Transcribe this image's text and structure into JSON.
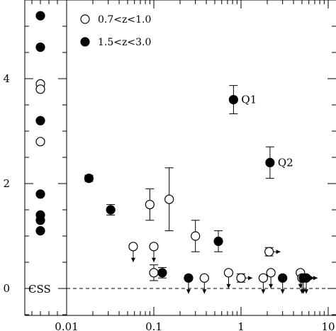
{
  "chart_data": {
    "type": "scatter",
    "title": "",
    "xlabel": "",
    "ylabel": "",
    "x_scale": "log",
    "xlim": [
      0.0045,
      10
    ],
    "ylim": [
      -0.55,
      5.45
    ],
    "x_tick_labels": [
      "0.01",
      "0.1",
      "1",
      "10"
    ],
    "y_tick_labels": [
      "0",
      "2",
      "4"
    ],
    "y_tick_values": [
      0,
      2,
      4
    ],
    "css_label": "CSS",
    "css_x": 0.0058,
    "legend_position": "top-left",
    "series": [
      {
        "name": "0.7<z<1.0",
        "marker": "open-circle",
        "css_values": [
          3.9,
          3.8,
          2.8
        ],
        "points": [
          {
            "x": 0.09,
            "y": 1.6,
            "err": [
              0.3,
              0.3
            ]
          },
          {
            "x": 0.15,
            "y": 1.7,
            "err": [
              0.6,
              0.6
            ]
          },
          {
            "x": 0.3,
            "y": 1.0,
            "err": [
              0.3,
              0.3
            ]
          },
          {
            "x": 2.1,
            "y": 0.7,
            "err": [
              0.08,
              0.08
            ],
            "right_limit": true
          },
          {
            "x": 0.1,
            "y": 0.3,
            "err": [
              0.15,
              0.15
            ]
          },
          {
            "x": 0.058,
            "y": 0.8,
            "upper_limit": true
          },
          {
            "x": 0.1,
            "y": 0.8,
            "upper_limit": true
          },
          {
            "x": 0.38,
            "y": 0.2,
            "upper_limit": true
          },
          {
            "x": 0.72,
            "y": 0.3,
            "upper_limit": true
          },
          {
            "x": 1.0,
            "y": 0.2,
            "err": [
              0.08,
              0.08
            ],
            "right_limit": true
          },
          {
            "x": 1.8,
            "y": 0.2,
            "upper_limit": true
          },
          {
            "x": 2.2,
            "y": 0.3,
            "upper_limit": true
          },
          {
            "x": 4.8,
            "y": 0.3,
            "upper_limit": true
          },
          {
            "x": 5.0,
            "y": 0.2,
            "upper_limit": true
          }
        ]
      },
      {
        "name": "1.5<z<3.0",
        "marker": "filled-circle",
        "css_values": [
          5.2,
          4.6,
          3.2,
          1.8,
          1.4,
          1.3,
          1.1
        ],
        "points": [
          {
            "x": 0.018,
            "y": 2.1,
            "err": [
              0.06,
              0.06
            ]
          },
          {
            "x": 0.032,
            "y": 1.5,
            "err": [
              0.1,
              0.1
            ]
          },
          {
            "x": 0.125,
            "y": 0.3,
            "err": [
              0.1,
              0.1
            ]
          },
          {
            "x": 0.25,
            "y": 0.2,
            "upper_limit": true
          },
          {
            "x": 0.55,
            "y": 0.9,
            "err": [
              0.2,
              0.2
            ]
          },
          {
            "x": 0.82,
            "y": 3.6,
            "err": [
              0.27,
              0.27
            ],
            "label": "Q1"
          },
          {
            "x": 2.15,
            "y": 2.4,
            "err": [
              0.3,
              0.3
            ],
            "label": "Q2"
          },
          {
            "x": 3.0,
            "y": 0.2,
            "upper_limit": true
          },
          {
            "x": 5.2,
            "y": 0.2,
            "upper_limit": true,
            "right_limit": true
          },
          {
            "x": 5.6,
            "y": 0.2,
            "upper_limit": true,
            "right_limit": true
          }
        ]
      }
    ]
  }
}
